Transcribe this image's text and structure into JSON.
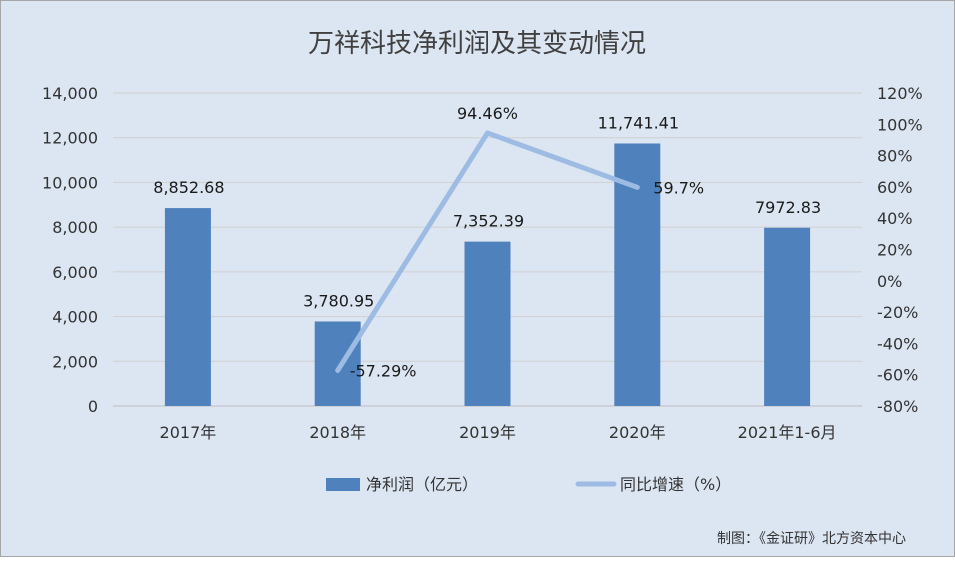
{
  "chart_data": {
    "type": "bar",
    "title": "万祥科技净利润及其变动情况",
    "categories": [
      "2017年",
      "2018年",
      "2019年",
      "2020年",
      "2021年1-6月"
    ],
    "series": [
      {
        "name": "净利润（亿元）",
        "type": "bar",
        "axis": "left",
        "color": "#4f81bd",
        "values": [
          8852.68,
          3780.95,
          7352.39,
          11741.41,
          7972.83
        ],
        "labels": [
          "8,852.68",
          "3,780.95",
          "7,352.39",
          "11,741.41",
          "7972.83"
        ]
      },
      {
        "name": "同比增速（%）",
        "type": "line",
        "axis": "right",
        "color": "#9dbbe3",
        "x": [
          "2018年",
          "2019年",
          "2020年"
        ],
        "values": [
          -57.29,
          94.46,
          59.7
        ],
        "labels": [
          "-57.29%",
          "94.46%",
          "59.7%"
        ]
      }
    ],
    "y_left": {
      "min": 0,
      "max": 14000,
      "ticks": [
        0,
        2000,
        4000,
        6000,
        8000,
        10000,
        12000,
        14000
      ],
      "tick_labels": [
        "0",
        "2,000",
        "4,000",
        "6,000",
        "8,000",
        "10,000",
        "12,000",
        "14,000"
      ]
    },
    "y_right": {
      "min": -80,
      "max": 120,
      "ticks": [
        -80,
        -60,
        -40,
        -20,
        0,
        20,
        40,
        60,
        80,
        100,
        120
      ],
      "tick_labels": [
        "-80%",
        "-60%",
        "-40%",
        "-20%",
        "0%",
        "20%",
        "40%",
        "60%",
        "80%",
        "100%",
        "120%"
      ]
    },
    "grid": true,
    "legend_position": "bottom",
    "source": "制图：《金证研》北方资本中心"
  }
}
